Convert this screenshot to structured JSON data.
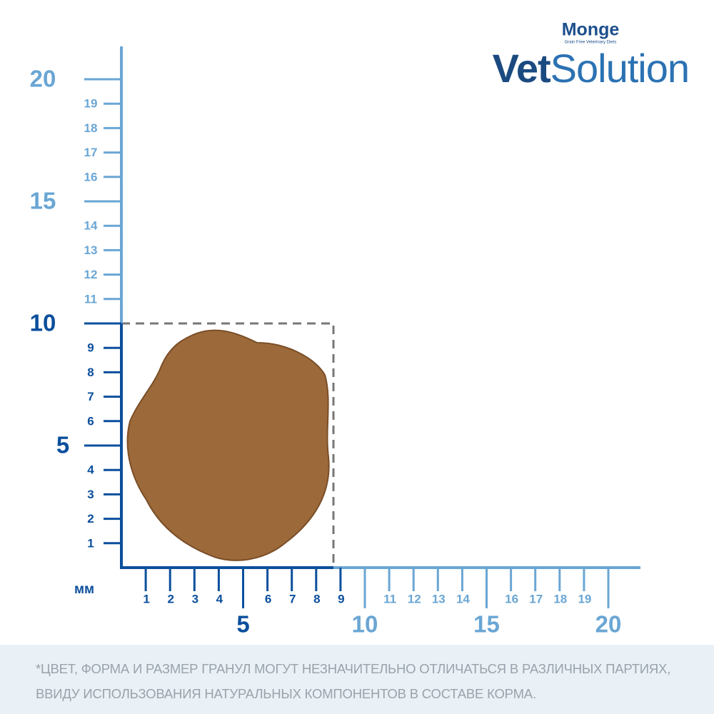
{
  "brand": {
    "name": "Monge",
    "tagline": "Grain Free Veterinary Diets",
    "product_prefix": "Vet",
    "product_suffix": "Solution"
  },
  "ruler": {
    "unit": "мм",
    "y_minor_labels": [
      1,
      2,
      3,
      4,
      6,
      7,
      8,
      9,
      11,
      12,
      13,
      14,
      16,
      17,
      18,
      19
    ],
    "y_major_labels": [
      5,
      10,
      15,
      20
    ],
    "x_minor_labels": [
      1,
      2,
      3,
      4,
      6,
      7,
      8,
      9,
      11,
      12,
      13,
      14,
      16,
      17,
      18,
      19
    ],
    "x_major_labels": [
      5,
      10,
      15,
      20
    ]
  },
  "footnote": {
    "lines": [
      "*ЦВЕТ, ФОРМА И РАЗМЕР ГРАНУЛ МОГУТ НЕЗНАЧИТЕЛЬНО ОТЛИЧАТЬСЯ В РАЗЛИЧНЫХ ПАРТИЯХ,",
      "ВВИДУ ИСПОЛЬЗОВАНИЯ НАТУРАЛЬНЫХ КОМПОНЕНТОВ В СОСТАВЕ КОРМА."
    ]
  }
}
